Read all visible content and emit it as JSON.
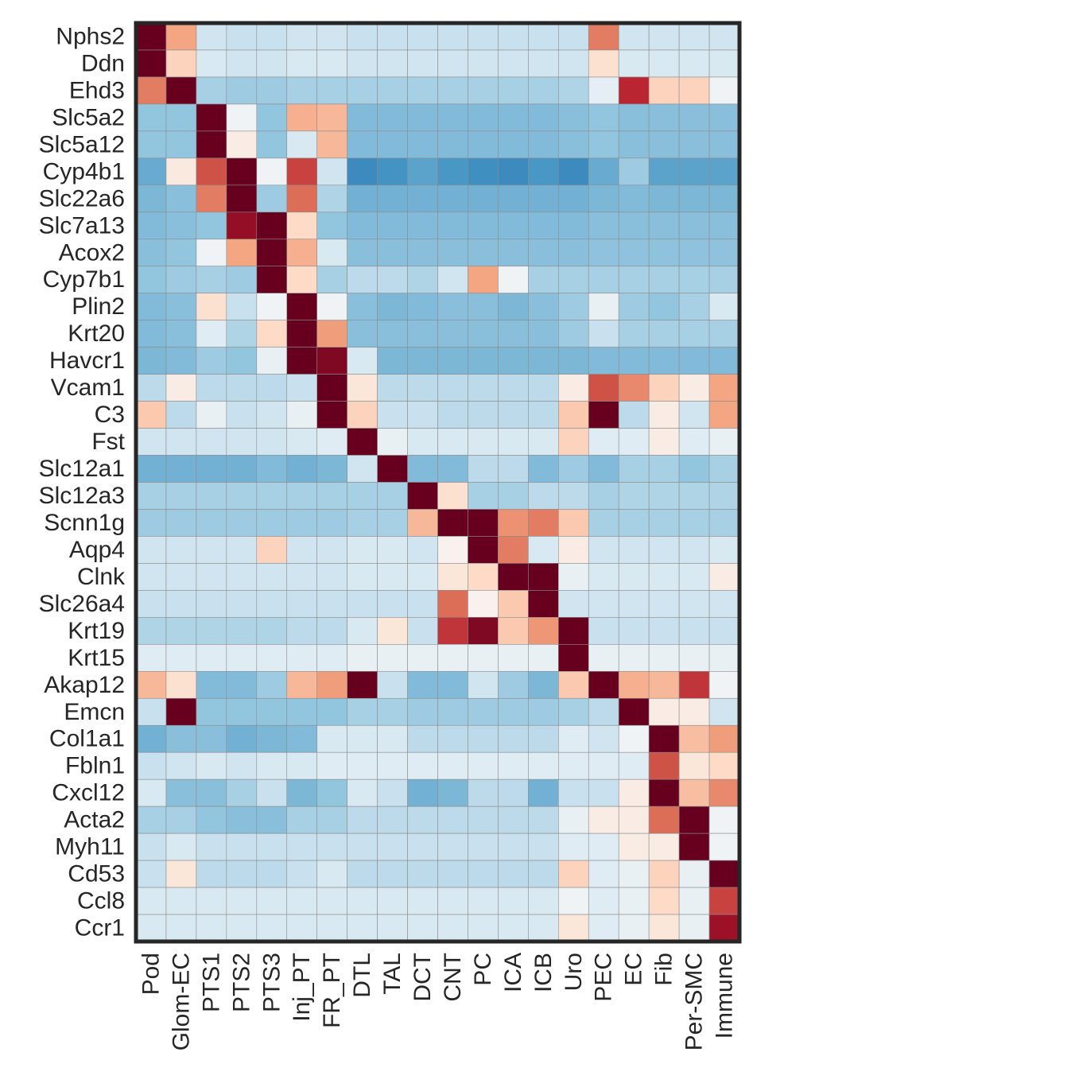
{
  "chart_data": {
    "type": "heatmap",
    "title": "",
    "xlabel": "",
    "ylabel": "",
    "colormap": "RdBu_r",
    "value_range": [
      -1,
      1
    ],
    "columns": [
      "Pod",
      "Glom-EC",
      "PTS1",
      "PTS2",
      "PTS3",
      "Inj_PT",
      "FR_PT",
      "DTL",
      "TAL",
      "DCT",
      "CNT",
      "PC",
      "ICA",
      "ICB",
      "Uro",
      "PEC",
      "EC",
      "Fib",
      "Per-SMC",
      "Immune"
    ],
    "rows": [
      "Nphs2",
      "Ddn",
      "Ehd3",
      "Slc5a2",
      "Slc5a12",
      "Cyp4b1",
      "Slc22a6",
      "Slc7a13",
      "Acox2",
      "Cyp7b1",
      "Plin2",
      "Krt20",
      "Havcr1",
      "Vcam1",
      "C3",
      "Fst",
      "Slc12a1",
      "Slc12a3",
      "Scnn1g",
      "Aqp4",
      "Clnk",
      "Slc26a4",
      "Krt19",
      "Krt15",
      "Akap12",
      "Emcn",
      "Col1a1",
      "Fbln1",
      "Cxcl12",
      "Acta2",
      "Myh11",
      "Cd53",
      "Ccl8",
      "Ccr1"
    ],
    "values": [
      [
        1.0,
        0.25,
        -0.1,
        -0.12,
        -0.12,
        -0.1,
        -0.1,
        -0.12,
        -0.12,
        -0.12,
        -0.12,
        -0.12,
        -0.12,
        -0.12,
        -0.12,
        0.4,
        -0.1,
        -0.1,
        -0.1,
        -0.1
      ],
      [
        1.0,
        0.12,
        -0.08,
        -0.1,
        -0.1,
        -0.08,
        -0.08,
        -0.1,
        -0.1,
        -0.1,
        -0.1,
        -0.1,
        -0.1,
        -0.1,
        -0.1,
        0.08,
        -0.08,
        -0.08,
        -0.08,
        -0.08
      ],
      [
        0.4,
        1.0,
        -0.2,
        -0.22,
        -0.22,
        -0.2,
        -0.2,
        -0.2,
        -0.2,
        -0.2,
        -0.2,
        -0.2,
        -0.2,
        -0.2,
        -0.18,
        -0.05,
        0.7,
        0.12,
        0.12,
        -0.02
      ],
      [
        -0.25,
        -0.25,
        1.0,
        -0.02,
        -0.25,
        0.22,
        0.2,
        -0.3,
        -0.3,
        -0.3,
        -0.3,
        -0.3,
        -0.3,
        -0.3,
        -0.28,
        -0.25,
        -0.28,
        -0.28,
        -0.28,
        -0.28
      ],
      [
        -0.25,
        -0.25,
        1.0,
        0.04,
        -0.25,
        -0.08,
        0.2,
        -0.3,
        -0.3,
        -0.3,
        -0.3,
        -0.3,
        -0.3,
        -0.3,
        -0.28,
        -0.25,
        -0.28,
        -0.28,
        -0.28,
        -0.28
      ],
      [
        -0.38,
        0.05,
        0.55,
        1.0,
        -0.02,
        0.6,
        -0.1,
        -0.55,
        -0.5,
        -0.42,
        -0.48,
        -0.52,
        -0.55,
        -0.48,
        -0.55,
        -0.38,
        -0.22,
        -0.42,
        -0.42,
        -0.42
      ],
      [
        -0.32,
        -0.28,
        0.4,
        1.0,
        -0.22,
        0.45,
        -0.18,
        -0.35,
        -0.35,
        -0.35,
        -0.35,
        -0.35,
        -0.35,
        -0.35,
        -0.35,
        -0.32,
        -0.3,
        -0.32,
        -0.32,
        -0.32
      ],
      [
        -0.3,
        -0.28,
        -0.25,
        0.85,
        1.0,
        0.1,
        -0.25,
        -0.3,
        -0.3,
        -0.3,
        -0.3,
        -0.3,
        -0.3,
        -0.3,
        -0.3,
        -0.28,
        -0.28,
        -0.28,
        -0.28,
        -0.28
      ],
      [
        -0.28,
        -0.25,
        -0.02,
        0.25,
        1.0,
        0.22,
        -0.08,
        -0.28,
        -0.28,
        -0.28,
        -0.28,
        -0.28,
        -0.28,
        -0.28,
        -0.28,
        -0.26,
        -0.26,
        -0.26,
        -0.26,
        -0.26
      ],
      [
        -0.25,
        -0.22,
        -0.2,
        -0.22,
        1.0,
        0.1,
        -0.2,
        -0.15,
        -0.15,
        -0.18,
        -0.1,
        0.25,
        -0.02,
        -0.2,
        -0.2,
        -0.2,
        -0.2,
        -0.2,
        -0.2,
        -0.2
      ],
      [
        -0.3,
        -0.28,
        0.08,
        -0.12,
        -0.02,
        1.0,
        -0.02,
        -0.28,
        -0.32,
        -0.3,
        -0.28,
        -0.28,
        -0.32,
        -0.28,
        -0.22,
        -0.04,
        -0.22,
        -0.25,
        -0.2,
        -0.08
      ],
      [
        -0.3,
        -0.28,
        -0.06,
        -0.18,
        0.1,
        1.0,
        0.28,
        -0.28,
        -0.28,
        -0.28,
        -0.28,
        -0.28,
        -0.28,
        -0.28,
        -0.22,
        -0.12,
        -0.2,
        -0.2,
        -0.2,
        -0.2
      ],
      [
        -0.32,
        -0.3,
        -0.22,
        -0.25,
        -0.04,
        1.0,
        0.92,
        -0.08,
        -0.32,
        -0.32,
        -0.32,
        -0.32,
        -0.32,
        -0.32,
        -0.32,
        -0.3,
        -0.3,
        -0.3,
        -0.3,
        -0.3
      ],
      [
        -0.15,
        0.04,
        -0.15,
        -0.15,
        -0.15,
        -0.12,
        1.0,
        0.06,
        -0.15,
        -0.15,
        -0.15,
        -0.15,
        -0.15,
        -0.15,
        0.04,
        0.55,
        0.35,
        0.12,
        0.04,
        0.25
      ],
      [
        0.15,
        -0.15,
        -0.04,
        -0.12,
        -0.1,
        -0.04,
        1.0,
        0.12,
        -0.12,
        -0.12,
        -0.15,
        -0.15,
        -0.15,
        -0.15,
        0.15,
        1.0,
        -0.15,
        0.04,
        -0.1,
        0.25
      ],
      [
        -0.1,
        -0.1,
        -0.1,
        -0.1,
        -0.1,
        -0.08,
        -0.06,
        1.0,
        -0.04,
        -0.08,
        -0.08,
        -0.08,
        -0.08,
        -0.08,
        0.12,
        -0.06,
        -0.06,
        0.04,
        -0.06,
        -0.04
      ],
      [
        -0.35,
        -0.35,
        -0.35,
        -0.35,
        -0.3,
        -0.35,
        -0.32,
        -0.1,
        1.0,
        -0.3,
        -0.3,
        -0.15,
        -0.15,
        -0.3,
        -0.22,
        -0.3,
        -0.2,
        -0.2,
        -0.25,
        -0.2
      ],
      [
        -0.2,
        -0.2,
        -0.2,
        -0.2,
        -0.2,
        -0.2,
        -0.2,
        -0.2,
        -0.2,
        1.0,
        0.08,
        -0.2,
        -0.2,
        -0.15,
        -0.15,
        -0.2,
        -0.18,
        -0.18,
        -0.18,
        -0.18
      ],
      [
        -0.22,
        -0.22,
        -0.22,
        -0.22,
        -0.22,
        -0.22,
        -0.22,
        -0.2,
        -0.2,
        0.2,
        1.0,
        1.0,
        0.32,
        0.4,
        0.15,
        -0.2,
        -0.2,
        -0.2,
        -0.2,
        -0.2
      ],
      [
        -0.1,
        -0.1,
        -0.1,
        -0.1,
        0.12,
        -0.1,
        -0.1,
        -0.08,
        -0.08,
        -0.1,
        0.02,
        1.0,
        0.4,
        -0.08,
        0.04,
        -0.1,
        -0.1,
        -0.1,
        -0.1,
        -0.08
      ],
      [
        -0.1,
        -0.1,
        -0.1,
        -0.1,
        -0.1,
        -0.1,
        -0.1,
        -0.08,
        -0.08,
        -0.08,
        0.06,
        0.1,
        1.0,
        1.0,
        -0.04,
        -0.08,
        -0.08,
        -0.08,
        -0.08,
        0.04
      ],
      [
        -0.12,
        -0.12,
        -0.12,
        -0.12,
        -0.12,
        -0.12,
        -0.12,
        -0.12,
        -0.12,
        -0.12,
        0.45,
        0.02,
        0.15,
        1.0,
        -0.1,
        -0.1,
        -0.1,
        -0.1,
        -0.1,
        -0.1
      ],
      [
        -0.18,
        -0.18,
        -0.18,
        -0.18,
        -0.18,
        -0.15,
        -0.15,
        -0.08,
        0.06,
        -0.12,
        0.65,
        0.92,
        0.15,
        0.3,
        1.0,
        -0.12,
        -0.12,
        -0.12,
        -0.12,
        -0.12
      ],
      [
        -0.06,
        -0.06,
        -0.06,
        -0.06,
        -0.06,
        -0.06,
        -0.06,
        -0.04,
        -0.04,
        -0.04,
        -0.04,
        -0.04,
        -0.04,
        -0.04,
        1.0,
        -0.04,
        -0.04,
        -0.04,
        -0.04,
        -0.04
      ],
      [
        0.2,
        0.08,
        -0.3,
        -0.3,
        -0.22,
        0.2,
        0.28,
        1.0,
        -0.12,
        -0.3,
        -0.3,
        -0.1,
        -0.22,
        -0.32,
        0.15,
        1.0,
        0.22,
        0.2,
        0.65,
        -0.02
      ],
      [
        -0.12,
        1.0,
        -0.25,
        -0.25,
        -0.25,
        -0.25,
        -0.25,
        -0.2,
        -0.2,
        -0.22,
        -0.22,
        -0.22,
        -0.22,
        -0.22,
        -0.2,
        -0.15,
        1.0,
        0.04,
        0.04,
        -0.1
      ],
      [
        -0.35,
        -0.28,
        -0.28,
        -0.35,
        -0.32,
        -0.3,
        -0.08,
        -0.08,
        -0.08,
        -0.15,
        -0.15,
        -0.15,
        -0.15,
        -0.15,
        -0.06,
        -0.1,
        -0.02,
        1.0,
        0.18,
        0.28
      ],
      [
        -0.12,
        -0.1,
        -0.08,
        -0.1,
        -0.08,
        -0.08,
        -0.06,
        -0.06,
        -0.06,
        -0.06,
        -0.06,
        -0.06,
        -0.06,
        -0.06,
        -0.06,
        -0.06,
        -0.06,
        0.55,
        0.06,
        0.1
      ],
      [
        -0.08,
        -0.28,
        -0.28,
        -0.2,
        -0.12,
        -0.32,
        -0.25,
        -0.08,
        -0.12,
        -0.35,
        -0.32,
        -0.15,
        -0.15,
        -0.35,
        -0.12,
        -0.12,
        0.04,
        1.0,
        0.18,
        0.35
      ],
      [
        -0.2,
        -0.2,
        -0.25,
        -0.28,
        -0.28,
        -0.2,
        -0.2,
        -0.15,
        -0.15,
        -0.15,
        -0.15,
        -0.15,
        -0.15,
        -0.15,
        -0.04,
        0.04,
        0.04,
        0.45,
        1.0,
        -0.02
      ],
      [
        -0.12,
        -0.08,
        -0.12,
        -0.12,
        -0.12,
        -0.12,
        -0.12,
        -0.12,
        -0.12,
        -0.12,
        -0.12,
        -0.12,
        -0.12,
        -0.12,
        -0.06,
        -0.06,
        0.04,
        0.04,
        1.0,
        -0.02
      ],
      [
        -0.12,
        0.06,
        -0.15,
        -0.15,
        -0.15,
        -0.12,
        -0.08,
        -0.15,
        -0.15,
        -0.15,
        -0.15,
        -0.15,
        -0.15,
        -0.15,
        0.12,
        -0.06,
        -0.04,
        0.12,
        -0.04,
        1.0
      ],
      [
        -0.08,
        -0.08,
        -0.08,
        -0.08,
        -0.08,
        -0.08,
        -0.08,
        -0.08,
        -0.08,
        -0.08,
        -0.08,
        -0.08,
        -0.08,
        -0.08,
        -0.02,
        -0.06,
        -0.04,
        0.1,
        -0.04,
        0.6
      ],
      [
        -0.08,
        -0.08,
        -0.08,
        -0.08,
        -0.08,
        -0.08,
        -0.08,
        -0.08,
        -0.08,
        -0.08,
        -0.08,
        -0.08,
        -0.08,
        -0.08,
        0.06,
        -0.06,
        -0.04,
        0.06,
        -0.04,
        0.82
      ]
    ]
  }
}
